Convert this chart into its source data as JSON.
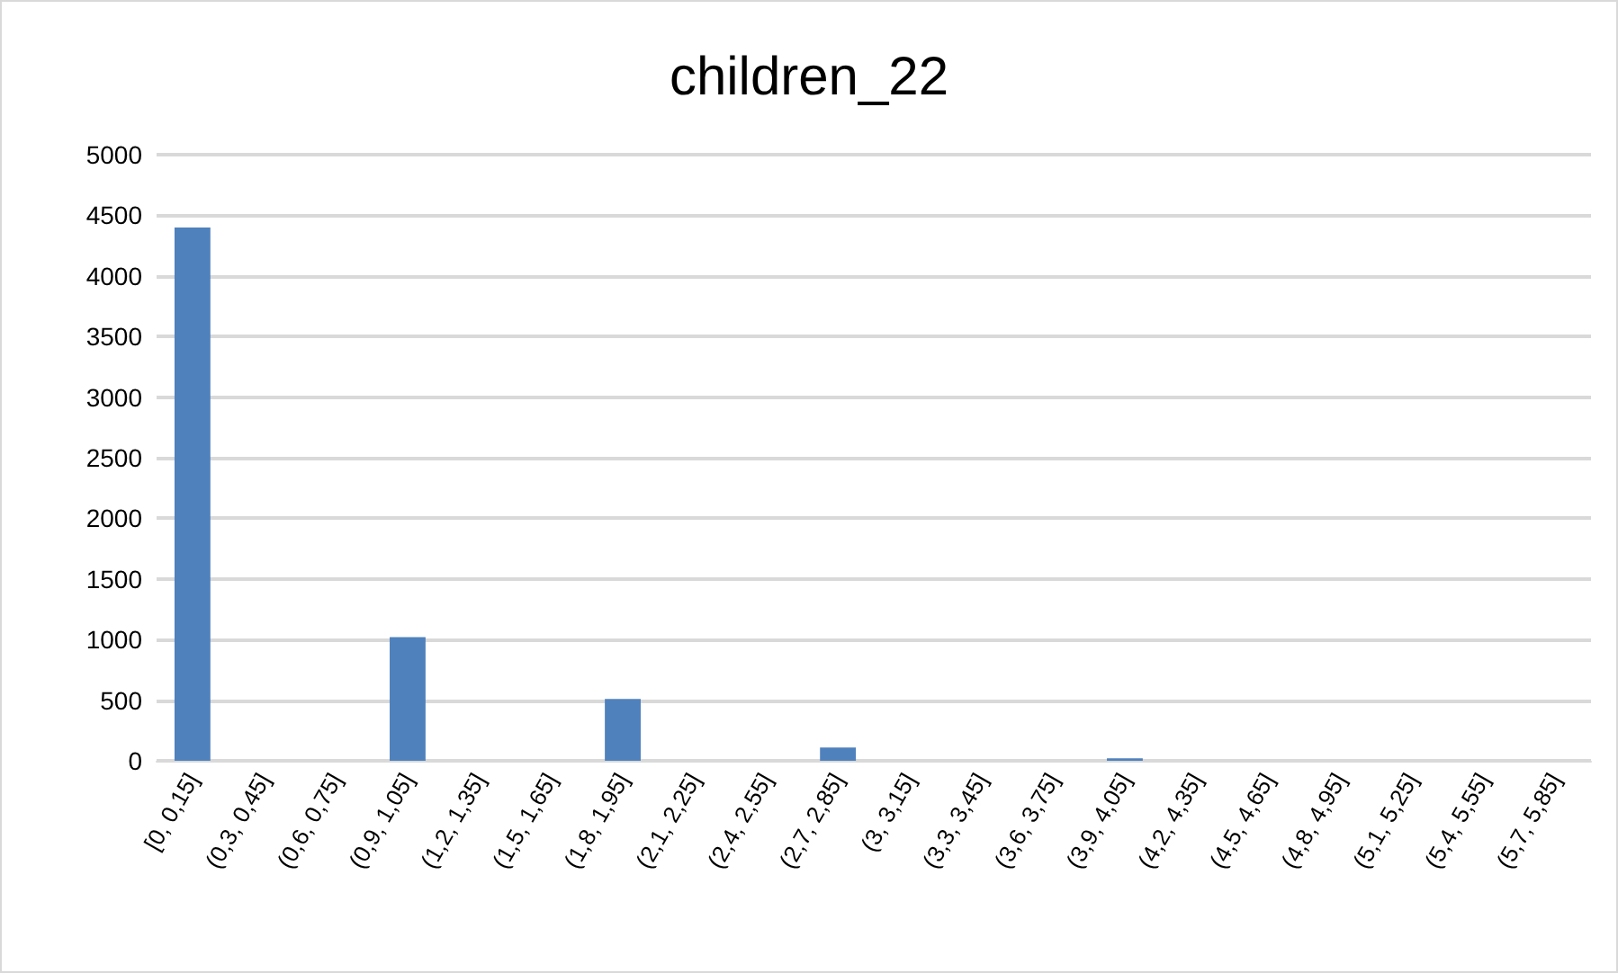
{
  "chart_data": {
    "type": "bar",
    "title": "children_22",
    "categories": [
      "[0, 0,15]",
      "(0,3, 0,45]",
      "(0,6, 0,75]",
      "(0,9, 1,05]",
      "(1,2, 1,35]",
      "(1,5, 1,65]",
      "(1,8, 1,95]",
      "(2,1, 2,25]",
      "(2,4, 2,55]",
      "(2,7, 2,85]",
      "(3, 3,15]",
      "(3,3, 3,45]",
      "(3,6, 3,75]",
      "(3,9, 4,05]",
      "(4,2, 4,35]",
      "(4,5, 4,65]",
      "(4,8, 4,95]",
      "(5,1, 5,25]",
      "(5,4, 5,55]",
      "(5,7, 5,85]"
    ],
    "values": [
      4400,
      0,
      0,
      1020,
      0,
      0,
      510,
      0,
      0,
      110,
      0,
      0,
      0,
      20,
      0,
      0,
      0,
      0,
      0,
      0
    ],
    "color": "#4f81bd",
    "ylim": [
      0,
      5000
    ],
    "yticks": [
      0,
      500,
      1000,
      1500,
      2000,
      2500,
      3000,
      3500,
      4000,
      4500,
      5000
    ],
    "grid": true
  }
}
